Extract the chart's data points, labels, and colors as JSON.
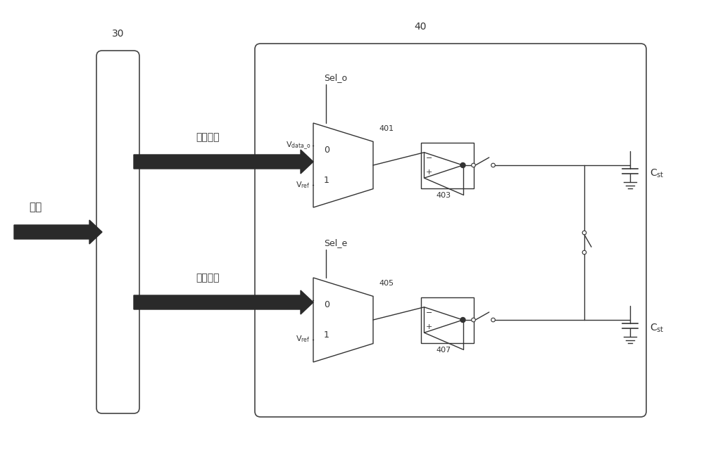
{
  "bg_color": "#f5f5f5",
  "line_color": "#333333",
  "fig_width": 10.0,
  "fig_height": 6.5,
  "dpi": 100,
  "label_30": "30",
  "label_40": "40",
  "label_data": "数据",
  "label_odd": "奇数数据",
  "label_even": "偶数数据",
  "label_sel_o": "Sel_o",
  "label_sel_e": "Sel_e",
  "label_401": "401",
  "label_403": "403",
  "label_405": "405",
  "label_407": "407"
}
